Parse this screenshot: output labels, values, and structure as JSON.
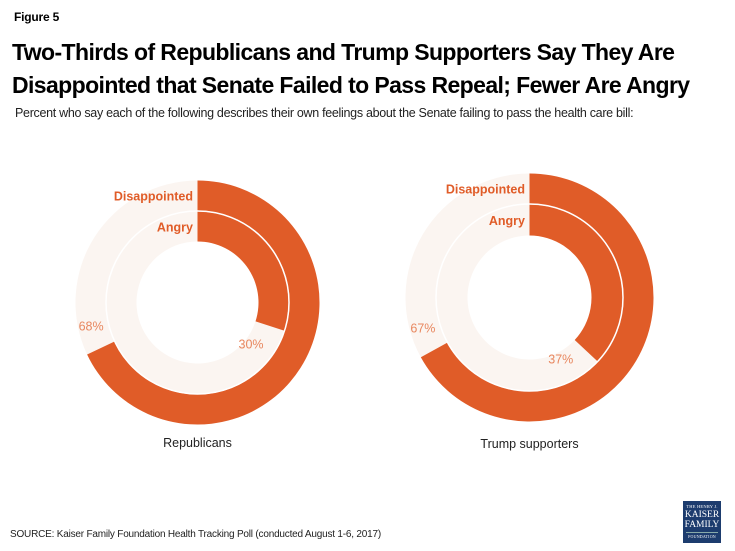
{
  "figure_label": "Figure 5",
  "title": "Two-Thirds of Republicans and Trump Supporters Say They Are Disappointed that Senate Failed to Pass Repeal; Fewer Are Angry",
  "subtitle": "Percent who say each of the following describes their own feelings about the Senate failing to pass the health care bill:",
  "source": "SOURCE: Kaiser Family Foundation Health Tracking Poll (conducted August 1-6, 2017)",
  "logo": {
    "line1": "THE HENRY J.",
    "line2": "KAISER",
    "line3": "FAMILY",
    "line4": "FOUNDATION"
  },
  "colors": {
    "accent": "#e05c28",
    "remainder": "#fbf5f1",
    "label": "#e8875f",
    "series_label": "#e05c28"
  },
  "chart_data": [
    {
      "type": "pie",
      "subtype": "nested-donut",
      "group": "Republicans",
      "rings": [
        {
          "name": "Disappointed",
          "value": 68,
          "label": "68%"
        },
        {
          "name": "Angry",
          "value": 30,
          "label": "30%"
        }
      ],
      "max": 100
    },
    {
      "type": "pie",
      "subtype": "nested-donut",
      "group": "Trump supporters",
      "rings": [
        {
          "name": "Disappointed",
          "value": 67,
          "label": "67%"
        },
        {
          "name": "Angry",
          "value": 37,
          "label": "37%"
        }
      ],
      "max": 100
    }
  ]
}
